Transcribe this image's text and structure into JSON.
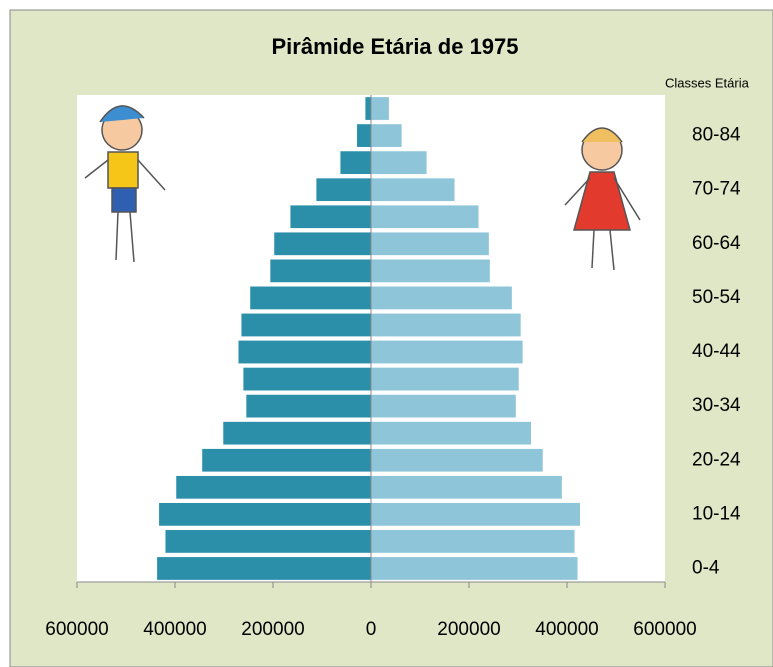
{
  "chart_data": {
    "type": "pyramid",
    "title": "Pirâmide Etária de 1975",
    "y_label": "Classes Etária",
    "categories": [
      "0-4",
      null,
      "10-14",
      null,
      "20-24",
      null,
      "30-34",
      null,
      "40-44",
      null,
      "50-54",
      null,
      "60-64",
      null,
      "70-74",
      null,
      "80-84",
      null
    ],
    "series": [
      {
        "color": "#2b8fa9",
        "values": [
          -437000,
          -420000,
          -433000,
          -398000,
          -345000,
          -302000,
          -255000,
          -261000,
          -271000,
          -265000,
          -247000,
          -206000,
          -198000,
          -165000,
          -112000,
          -63000,
          -29000,
          -12000
        ]
      },
      {
        "color": "#8ec5d9",
        "values": [
          422000,
          416000,
          427000,
          390000,
          351000,
          327000,
          296000,
          302000,
          310000,
          306000,
          288000,
          243000,
          241000,
          220000,
          171000,
          114000,
          63000,
          37000
        ]
      }
    ],
    "xlim": [
      -600000,
      600000
    ],
    "xticks": [
      {
        "value": -600000,
        "label": "600000"
      },
      {
        "value": -400000,
        "label": "400000"
      },
      {
        "value": -200000,
        "label": "200000"
      },
      0,
      200000,
      400000,
      600000
    ]
  }
}
